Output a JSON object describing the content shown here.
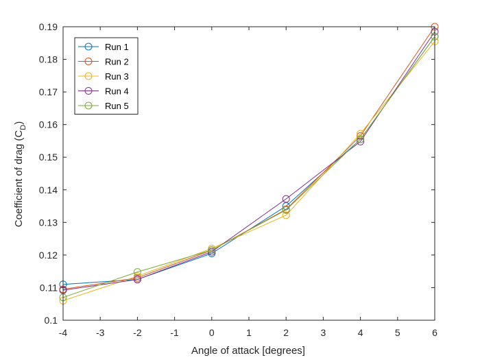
{
  "chart_data": {
    "type": "line",
    "title": "",
    "xlabel": "Angle of attack [degrees]",
    "ylabel": "Coefficient of drag (C",
    "ylabel_subscript": "D",
    "ylabel_close": ")",
    "xlim": [
      -4,
      6
    ],
    "ylim": [
      0.1,
      0.19
    ],
    "xticks": [
      "-4",
      "-3",
      "-2",
      "-1",
      "0",
      "1",
      "2",
      "3",
      "4",
      "5",
      "6"
    ],
    "yticks": [
      "0.1",
      "0.11",
      "0.12",
      "0.13",
      "0.14",
      "0.15",
      "0.16",
      "0.17",
      "0.18",
      "0.19"
    ],
    "grid": false,
    "legend": "top-left",
    "marker": "circle",
    "x": [
      -4,
      -2,
      0,
      2,
      4,
      6
    ],
    "series": [
      {
        "name": "Run 1",
        "color": "#0072BD",
        "values": [
          0.111,
          0.1125,
          0.1205,
          0.135,
          0.1555,
          0.187
        ]
      },
      {
        "name": "Run 2",
        "color": "#D95319",
        "values": [
          0.1095,
          0.113,
          0.1215,
          0.134,
          0.1565,
          0.19
        ]
      },
      {
        "name": "Run 3",
        "color": "#EDB120",
        "values": [
          0.106,
          0.1135,
          0.122,
          0.1322,
          0.1572,
          0.1855
        ]
      },
      {
        "name": "Run 4",
        "color": "#7E2F8E",
        "values": [
          0.1092,
          0.1125,
          0.121,
          0.1372,
          0.1548,
          0.1885
        ]
      },
      {
        "name": "Run 5",
        "color": "#77AC30",
        "values": [
          0.107,
          0.1148,
          0.1215,
          0.1338,
          0.1555,
          0.187
        ]
      }
    ]
  }
}
